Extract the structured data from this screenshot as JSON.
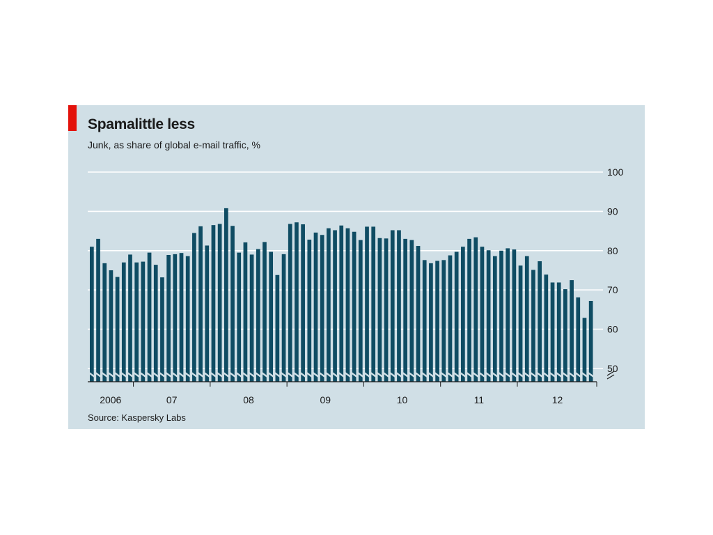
{
  "title": "Spamalittle less",
  "subtitle": "Junk, as share of global e-mail traffic, %",
  "source": "Source: Kaspersky Labs",
  "colors": {
    "background": "#d0dfe6",
    "bar": "#0f4c63",
    "accent": "#e3120b",
    "gridline": "#ffffff"
  },
  "chart_data": {
    "type": "bar",
    "title": "Spamalittle less",
    "subtitle": "Junk, as share of global e-mail traffic, %",
    "xlabel": "",
    "ylabel": "",
    "ylim": [
      47,
      100
    ],
    "yticks": [
      100,
      90,
      80,
      70,
      60,
      50
    ],
    "axis_break": true,
    "grid": true,
    "y_axis_side": "right",
    "year_labels": [
      "2006",
      "07",
      "08",
      "09",
      "10",
      "11",
      "12"
    ],
    "categories": [
      "2006-06",
      "2006-07",
      "2006-08",
      "2006-09",
      "2006-10",
      "2006-11",
      "2006-12",
      "2007-01",
      "2007-02",
      "2007-03",
      "2007-04",
      "2007-05",
      "2007-06",
      "2007-07",
      "2007-08",
      "2007-09",
      "2007-10",
      "2007-11",
      "2007-12",
      "2008-01",
      "2008-02",
      "2008-03",
      "2008-04",
      "2008-05",
      "2008-06",
      "2008-07",
      "2008-08",
      "2008-09",
      "2008-10",
      "2008-11",
      "2008-12",
      "2009-01",
      "2009-02",
      "2009-03",
      "2009-04",
      "2009-05",
      "2009-06",
      "2009-07",
      "2009-08",
      "2009-09",
      "2009-10",
      "2009-11",
      "2009-12",
      "2010-01",
      "2010-02",
      "2010-03",
      "2010-04",
      "2010-05",
      "2010-06",
      "2010-07",
      "2010-08",
      "2010-09",
      "2010-10",
      "2010-11",
      "2010-12",
      "2011-01",
      "2011-02",
      "2011-03",
      "2011-04",
      "2011-05",
      "2011-06",
      "2011-07",
      "2011-08",
      "2011-09",
      "2011-10",
      "2011-11",
      "2011-12",
      "2012-01",
      "2012-02",
      "2012-03",
      "2012-04",
      "2012-05",
      "2012-06",
      "2012-07",
      "2012-08",
      "2012-09",
      "2012-10",
      "2012-11",
      "2012-12"
    ],
    "values": [
      81,
      83,
      76.8,
      75,
      73.3,
      77,
      79,
      77,
      77.2,
      79.5,
      76.4,
      73.2,
      78.9,
      79.1,
      79.4,
      78.6,
      84.5,
      86.2,
      81.3,
      86.5,
      86.8,
      90.8,
      86.3,
      79.5,
      82.1,
      79,
      80.4,
      82.2,
      79.7,
      73.8,
      79.1,
      86.8,
      87.2,
      86.7,
      82.8,
      84.6,
      84,
      85.7,
      85.2,
      86.4,
      85.7,
      84.8,
      82.7,
      86.1,
      86.1,
      83.2,
      83.1,
      85.2,
      85.2,
      83,
      82.7,
      81.2,
      77.6,
      76.8,
      77.4,
      77.6,
      78.8,
      79.7,
      81,
      83,
      83.4,
      81,
      80.1,
      78.6,
      80,
      80.6,
      80.3,
      76.2,
      78.6,
      75.1,
      77.3,
      73.9,
      71.9,
      71.9,
      70.2,
      72.5,
      68.1,
      62.9,
      67.2
    ]
  }
}
